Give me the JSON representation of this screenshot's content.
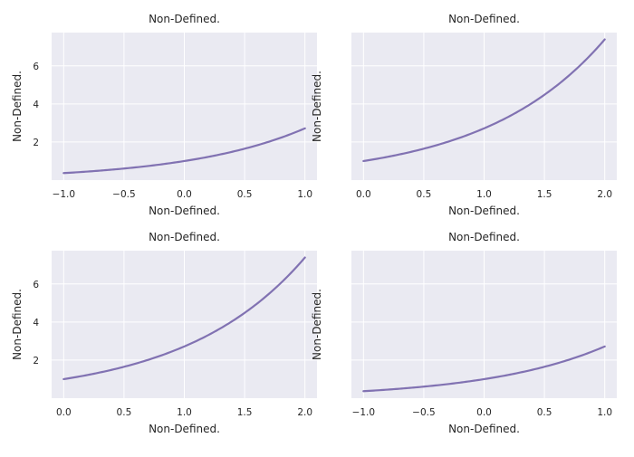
{
  "colors": {
    "plot_background": "#eaeaf2",
    "grid": "#ffffff",
    "line": "#8172b2",
    "text": "#262626"
  },
  "chart_data": [
    {
      "type": "line",
      "title": "Non-Defined.",
      "xlabel": "Non-Defined.",
      "ylabel": "Non-Defined.",
      "function": "exp(x)",
      "x": [
        -1.0,
        -0.75,
        -0.5,
        -0.25,
        0.0,
        0.25,
        0.5,
        0.75,
        1.0
      ],
      "y": [
        0.368,
        0.472,
        0.607,
        0.779,
        1.0,
        1.284,
        1.649,
        2.117,
        2.718
      ],
      "xlim": [
        -1.1,
        1.1
      ],
      "ylim": [
        0,
        7.75
      ],
      "xticks": [
        -1.0,
        -0.5,
        0.0,
        0.5,
        1.0
      ],
      "xtick_labels": [
        "−1.0",
        "−0.5",
        "0.0",
        "0.5",
        "1.0"
      ],
      "yticks": [
        2,
        4,
        6
      ],
      "ytick_labels": [
        "2",
        "4",
        "6"
      ],
      "grid": true
    },
    {
      "type": "line",
      "title": "Non-Defined.",
      "xlabel": "Non-Defined.",
      "ylabel": "Non-Defined.",
      "function": "exp(x)",
      "x": [
        0.0,
        0.25,
        0.5,
        0.75,
        1.0,
        1.25,
        1.5,
        1.75,
        2.0
      ],
      "y": [
        1.0,
        1.284,
        1.649,
        2.117,
        2.718,
        3.49,
        4.482,
        5.755,
        7.389
      ],
      "xlim": [
        -0.1,
        2.1
      ],
      "ylim": [
        0,
        7.75
      ],
      "xticks": [
        0.0,
        0.5,
        1.0,
        1.5,
        2.0
      ],
      "xtick_labels": [
        "0.0",
        "0.5",
        "1.0",
        "1.5",
        "2.0"
      ],
      "yticks": [
        2,
        4,
        6
      ],
      "ytick_labels": [],
      "grid": true
    },
    {
      "type": "line",
      "title": "Non-Defined.",
      "xlabel": "Non-Defined.",
      "ylabel": "Non-Defined.",
      "function": "exp(x)",
      "x": [
        0.0,
        0.25,
        0.5,
        0.75,
        1.0,
        1.25,
        1.5,
        1.75,
        2.0
      ],
      "y": [
        1.0,
        1.284,
        1.649,
        2.117,
        2.718,
        3.49,
        4.482,
        5.755,
        7.389
      ],
      "xlim": [
        -0.1,
        2.1
      ],
      "ylim": [
        0,
        7.75
      ],
      "xticks": [
        0.0,
        0.5,
        1.0,
        1.5,
        2.0
      ],
      "xtick_labels": [
        "0.0",
        "0.5",
        "1.0",
        "1.5",
        "2.0"
      ],
      "yticks": [
        2,
        4,
        6
      ],
      "ytick_labels": [
        "2",
        "4",
        "6"
      ],
      "grid": true
    },
    {
      "type": "line",
      "title": "Non-Defined.",
      "xlabel": "Non-Defined.",
      "ylabel": "Non-Defined.",
      "function": "exp(x)",
      "x": [
        -1.0,
        -0.75,
        -0.5,
        -0.25,
        0.0,
        0.25,
        0.5,
        0.75,
        1.0
      ],
      "y": [
        0.368,
        0.472,
        0.607,
        0.779,
        1.0,
        1.284,
        1.649,
        2.117,
        2.718
      ],
      "xlim": [
        -1.1,
        1.1
      ],
      "ylim": [
        0,
        7.75
      ],
      "xticks": [
        -1.0,
        -0.5,
        0.0,
        0.5,
        1.0
      ],
      "xtick_labels": [
        "−1.0",
        "−0.5",
        "0.0",
        "0.5",
        "1.0"
      ],
      "yticks": [
        2,
        4,
        6
      ],
      "ytick_labels": [],
      "grid": true
    }
  ]
}
